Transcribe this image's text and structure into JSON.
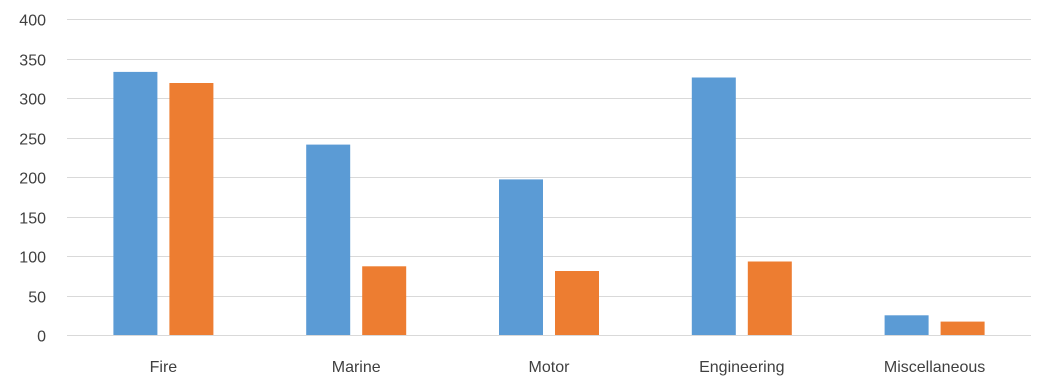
{
  "chart_data": {
    "type": "bar",
    "title": "",
    "xlabel": "",
    "ylabel": "",
    "categories": [
      "Fire",
      "Marine",
      "Motor",
      "Engineering",
      "Miscellaneous"
    ],
    "series": [
      {
        "values": [
          333,
          241,
          197,
          326,
          25
        ],
        "color": "#5b9bd5"
      },
      {
        "values": [
          319,
          87,
          81,
          93,
          17
        ],
        "color": "#ed7d31"
      }
    ],
    "ylim": [
      0,
      400
    ],
    "yticks": [
      "0",
      "50",
      "100",
      "150",
      "200",
      "250",
      "300",
      "350",
      "400"
    ],
    "grid": true,
    "gridColor": "#d9d9d9",
    "legend": "none"
  }
}
